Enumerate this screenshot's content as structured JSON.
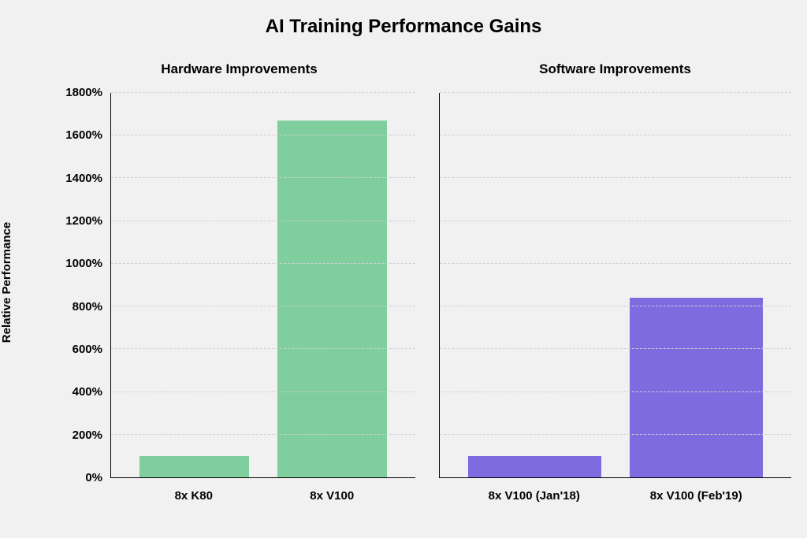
{
  "title": "AI Training Performance Gains",
  "y_axis": {
    "label": "Relative Performance",
    "min": 0,
    "max": 1800,
    "step": 200,
    "ticks": [
      0,
      200,
      400,
      600,
      800,
      1000,
      1200,
      1400,
      1600,
      1800
    ],
    "tick_labels": [
      "0%",
      "200%",
      "400%",
      "600%",
      "800%",
      "1000%",
      "1200%",
      "1400%",
      "1600%",
      "1800%"
    ],
    "tick_fontsize": 15,
    "label_fontsize": 15
  },
  "grid": {
    "color": "#d0d0d0",
    "style": "dashed"
  },
  "background_color": "#f1f1f1",
  "axis_color": "#000000",
  "title_fontsize": 24,
  "panel_title_fontsize": 17,
  "panels": [
    {
      "title": "Hardware Improvements",
      "type": "bar",
      "bar_color": "#80cd9e",
      "categories": [
        "8x K80",
        "8x V100"
      ],
      "values": [
        100,
        1670
      ]
    },
    {
      "title": "Software Improvements",
      "type": "bar",
      "bar_color": "#7e6be0",
      "categories": [
        "8x V100 (Jan'18)",
        "8x V100 (Feb'19)"
      ],
      "values": [
        100,
        840
      ]
    }
  ]
}
